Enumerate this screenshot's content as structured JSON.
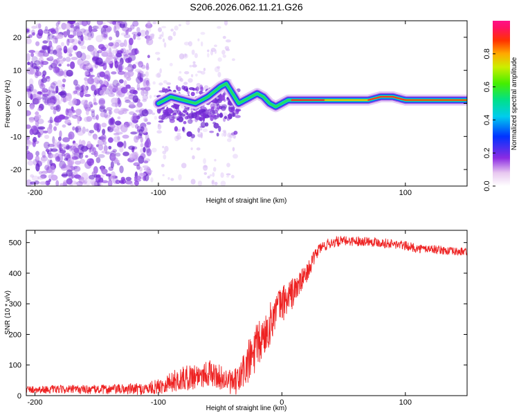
{
  "chart_data": [
    {
      "type": "heatmap",
      "title": "S206.2026.062.11.21.G26",
      "xlabel": "Height of straight line (km)",
      "ylabel": "Frequency (Hz)",
      "xlim": [
        -207,
        150
      ],
      "ylim": [
        -25,
        25
      ],
      "xticks": [
        -200,
        -100,
        0,
        100
      ],
      "xtick_labels": [
        "-200",
        "-100",
        "",
        "100"
      ],
      "yticks": [
        -20,
        -10,
        0,
        10,
        20
      ],
      "ridge_x": [
        -100,
        -90,
        -80,
        -70,
        -60,
        -50,
        -45,
        -40,
        -35,
        -30,
        -25,
        -20,
        -15,
        -10,
        -5,
        0,
        5,
        10,
        20,
        30,
        40,
        50,
        60,
        70,
        80,
        90,
        100,
        110,
        120,
        130,
        140,
        150
      ],
      "ridge_y": [
        0,
        2,
        1,
        0,
        2,
        5,
        6,
        3,
        0,
        1,
        2,
        3,
        2,
        0,
        -1,
        0,
        1,
        1,
        1,
        1,
        1,
        1,
        1,
        1,
        2,
        2,
        1,
        1,
        1,
        1,
        1,
        1
      ],
      "colorbar": {
        "label": "Normalized spectral amplitude",
        "range": [
          0,
          1
        ],
        "ticks": [
          0.0,
          0.2,
          0.4,
          0.6,
          0.8
        ],
        "tick_labels": [
          "0.0",
          "0.2",
          "0.4",
          "0.6",
          "0.8"
        ]
      }
    },
    {
      "type": "line",
      "title": "",
      "xlabel": "Height of straight line (km)",
      "ylabel": "SNR (10 * v/v)",
      "xlim": [
        -207,
        150
      ],
      "ylim": [
        0,
        540
      ],
      "xticks": [
        -200,
        -100,
        0,
        100
      ],
      "xtick_labels": [
        "-200",
        "-100",
        "0",
        "100"
      ],
      "yticks": [
        0,
        100,
        200,
        300,
        400,
        500
      ],
      "line_color": "#ee2222",
      "series": [
        {
          "name": "SNR",
          "x": [
            -207,
            -150,
            -110,
            -100,
            -90,
            -80,
            -70,
            -60,
            -50,
            -40,
            -35,
            -30,
            -25,
            -20,
            -15,
            -10,
            -5,
            0,
            5,
            10,
            15,
            20,
            25,
            30,
            40,
            50,
            60,
            70,
            80,
            90,
            100,
            110,
            120,
            130,
            140,
            150
          ],
          "values": [
            20,
            20,
            22,
            30,
            45,
            55,
            65,
            75,
            60,
            40,
            50,
            90,
            120,
            160,
            190,
            230,
            280,
            300,
            320,
            340,
            370,
            400,
            440,
            480,
            500,
            505,
            505,
            505,
            500,
            495,
            490,
            480,
            480,
            475,
            470,
            470
          ],
          "spread": [
            12,
            15,
            20,
            25,
            35,
            40,
            45,
            45,
            40,
            40,
            50,
            70,
            80,
            80,
            70,
            70,
            60,
            60,
            60,
            50,
            40,
            30,
            25,
            20,
            18,
            16,
            16,
            16,
            16,
            16,
            15,
            15,
            14,
            14,
            14,
            14
          ]
        }
      ]
    }
  ]
}
